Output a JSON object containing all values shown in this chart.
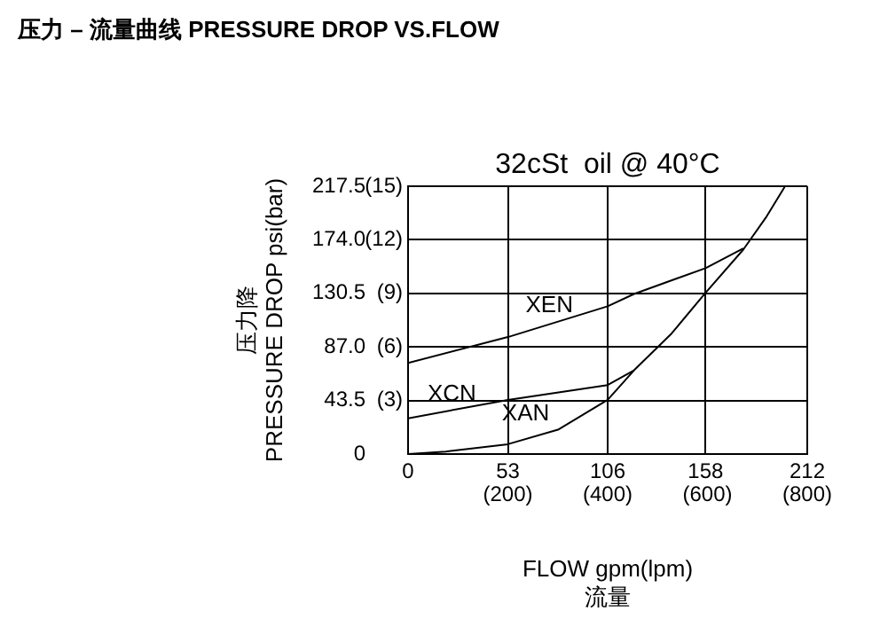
{
  "chart_data": {
    "type": "line",
    "title": "压力 – 流量曲线 PRESSURE DROP VS.FLOW",
    "subtitle": "32cSt  oil @ 40°C",
    "xlabel": "FLOW gpm(lpm)\n流量",
    "ylabel": "压力降\nPRESSURE DROP psi(bar)",
    "xlim": [
      0,
      212
    ],
    "xticks": [
      0,
      53,
      106,
      158,
      212
    ],
    "x2lim": [
      0,
      800
    ],
    "x2ticks": [
      {
        "value": 200,
        "label": "(200)"
      },
      {
        "value": 400,
        "label": "(400)"
      },
      {
        "value": 600,
        "label": "(600)"
      },
      {
        "value": 800,
        "label": "(800)"
      }
    ],
    "ylim": [
      0,
      217.5
    ],
    "yticks": [
      0,
      43.5,
      {
        "value": 87,
        "label": "87.0"
      },
      130.5,
      {
        "value": 174,
        "label": "174.0"
      },
      217.5
    ],
    "y2lim": [
      0,
      15
    ],
    "y2ticks": [
      {
        "value": 3,
        "label": "(3)"
      },
      {
        "value": 6,
        "label": "(6)"
      },
      {
        "value": 9,
        "label": "(9)"
      },
      {
        "value": 12,
        "label": "(12)"
      },
      {
        "value": 15,
        "label": "(15)"
      }
    ],
    "grid": true,
    "legend": false,
    "marker": "none",
    "line_style": "solid",
    "series": [
      {
        "name": "XEN",
        "color": "#000000",
        "x": [
          0,
          53,
          106,
          120,
          158,
          178
        ],
        "values": [
          74,
          95,
          120,
          130,
          151,
          167
        ]
      },
      {
        "name": "XCN",
        "color": "#000000",
        "x": [
          0,
          53,
          106,
          120
        ],
        "values": [
          29,
          44,
          56,
          68
        ]
      },
      {
        "name": "XAN",
        "color": "#000000",
        "x": [
          0,
          20,
          53,
          80,
          106,
          120,
          140,
          158,
          178,
          190,
          200
        ],
        "values": [
          0,
          2,
          8,
          20,
          44,
          68,
          98,
          131,
          166,
          192,
          217
        ]
      }
    ]
  }
}
